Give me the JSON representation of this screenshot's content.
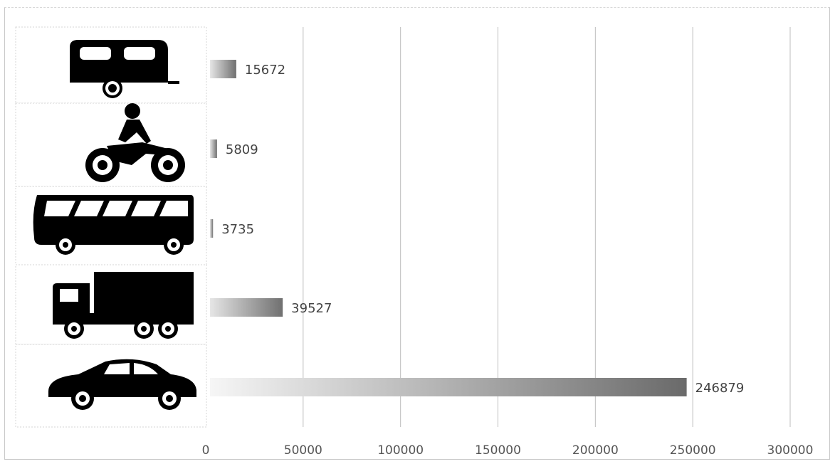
{
  "chart_data": {
    "type": "bar",
    "orientation": "horizontal",
    "categories": [
      "caravan-icon",
      "motorcycle-icon",
      "bus-icon",
      "truck-icon",
      "car-icon"
    ],
    "values": [
      15672,
      5809,
      3735,
      39527,
      246879
    ],
    "xlim": [
      0,
      300000
    ],
    "xticks": [
      "0",
      "50000",
      "100000",
      "150000",
      "200000",
      "250000",
      "300000"
    ],
    "tick_values": [
      0,
      50000,
      100000,
      150000,
      200000,
      250000,
      300000
    ],
    "data_labels": [
      "15672",
      "5809",
      "3735",
      "39527",
      "246879"
    ],
    "grid": true,
    "legend": "none",
    "colors": {
      "bar_start": "#f4f4f4",
      "bar_end": "#6e6e6e",
      "gridline": "#bdbdbd",
      "icon": "#000000",
      "text": "#444444"
    }
  }
}
